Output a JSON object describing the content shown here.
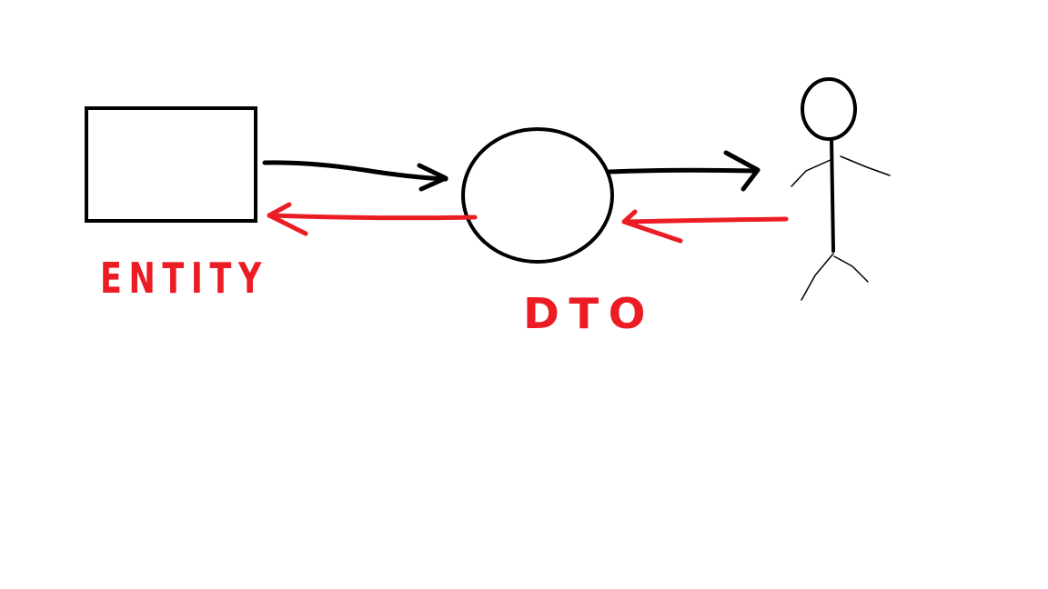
{
  "diagram": {
    "labels": {
      "entity": "ENTITY",
      "dto": "DTO"
    },
    "colors": {
      "ink": "#000000",
      "accent": "#ec1c24",
      "background": "#ffffff"
    }
  }
}
